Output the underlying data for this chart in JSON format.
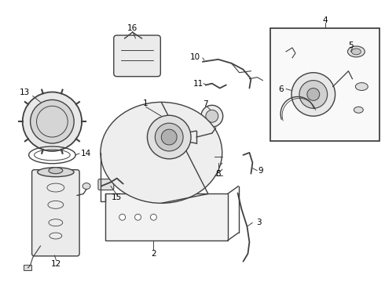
{
  "bg_color": "#ffffff",
  "line_color": "#404040",
  "text_color": "#000000",
  "thin_lw": 0.7,
  "med_lw": 1.0,
  "thick_lw": 1.3
}
